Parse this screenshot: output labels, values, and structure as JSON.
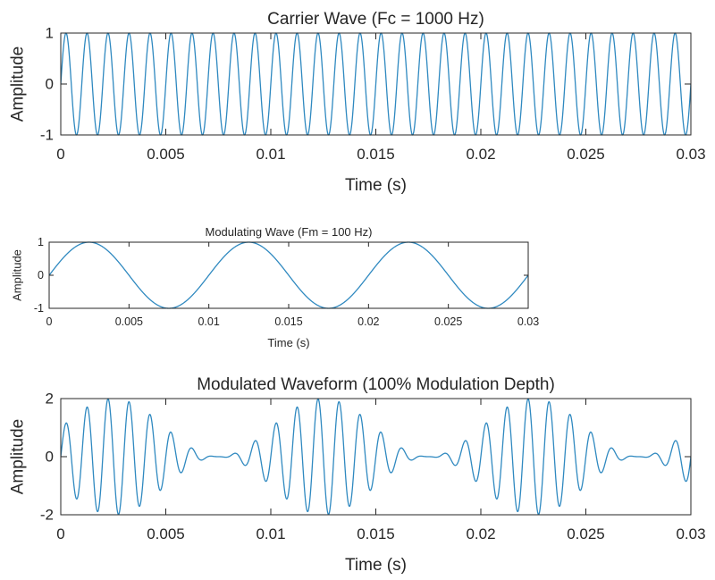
{
  "figure": {
    "background": "#ffffff",
    "line_color": "#2f89c0",
    "axis_color": "#262626"
  },
  "chart_data": [
    {
      "type": "line",
      "title": "Carrier Wave (Fc = 1000 Hz)",
      "xlabel": "Time (s)",
      "ylabel": "Amplitude",
      "xlim": [
        0,
        0.03
      ],
      "ylim": [
        -1,
        1
      ],
      "xticks": [
        0,
        0.005,
        0.01,
        0.015,
        0.02,
        0.025,
        0.03
      ],
      "xtick_labels": [
        "0",
        "0.005",
        "0.01",
        "0.015",
        "0.02",
        "0.025",
        "0.03"
      ],
      "yticks": [
        1,
        0,
        -1
      ],
      "ytick_labels": [
        "1",
        "0",
        "-1"
      ],
      "grid": false,
      "legend": "none",
      "series": [
        {
          "function": "y = sin(2*pi*1000*t)",
          "carrier_frequency_hz": 1000,
          "amplitude": 1,
          "t_range": [
            0,
            0.03
          ]
        }
      ]
    },
    {
      "type": "line",
      "title": "Modulating Wave (Fm = 100 Hz)",
      "xlabel": "Time (s)",
      "ylabel": "Amplitude",
      "xlim": [
        0,
        0.03
      ],
      "ylim": [
        -1,
        1
      ],
      "xticks": [
        0,
        0.005,
        0.01,
        0.015,
        0.02,
        0.025,
        0.03
      ],
      "xtick_labels": [
        "0",
        "0.005",
        "0.01",
        "0.015",
        "0.02",
        "0.025",
        "0.03"
      ],
      "yticks": [
        1,
        0,
        -1
      ],
      "ytick_labels": [
        "1",
        "0",
        "-1"
      ],
      "grid": false,
      "legend": "none",
      "series": [
        {
          "function": "y = sin(2*pi*100*t)",
          "modulating_frequency_hz": 100,
          "amplitude": 1,
          "t_range": [
            0,
            0.03
          ]
        }
      ]
    },
    {
      "type": "line",
      "title": "Modulated Waveform (100% Modulation Depth)",
      "xlabel": "Time (s)",
      "ylabel": "Amplitude",
      "xlim": [
        0,
        0.03
      ],
      "ylim": [
        -2,
        2
      ],
      "xticks": [
        0,
        0.005,
        0.01,
        0.015,
        0.02,
        0.025,
        0.03
      ],
      "xtick_labels": [
        "0",
        "0.005",
        "0.01",
        "0.015",
        "0.02",
        "0.025",
        "0.03"
      ],
      "yticks": [
        2,
        0,
        -2
      ],
      "ytick_labels": [
        "2",
        "0",
        "-2"
      ],
      "grid": false,
      "legend": "none",
      "series": [
        {
          "function": "y = (1 + sin(2*pi*100*t)) * sin(2*pi*1000*t)",
          "carrier_frequency_hz": 1000,
          "modulating_frequency_hz": 100,
          "modulation_depth": 1,
          "t_range": [
            0,
            0.03
          ]
        }
      ]
    }
  ]
}
